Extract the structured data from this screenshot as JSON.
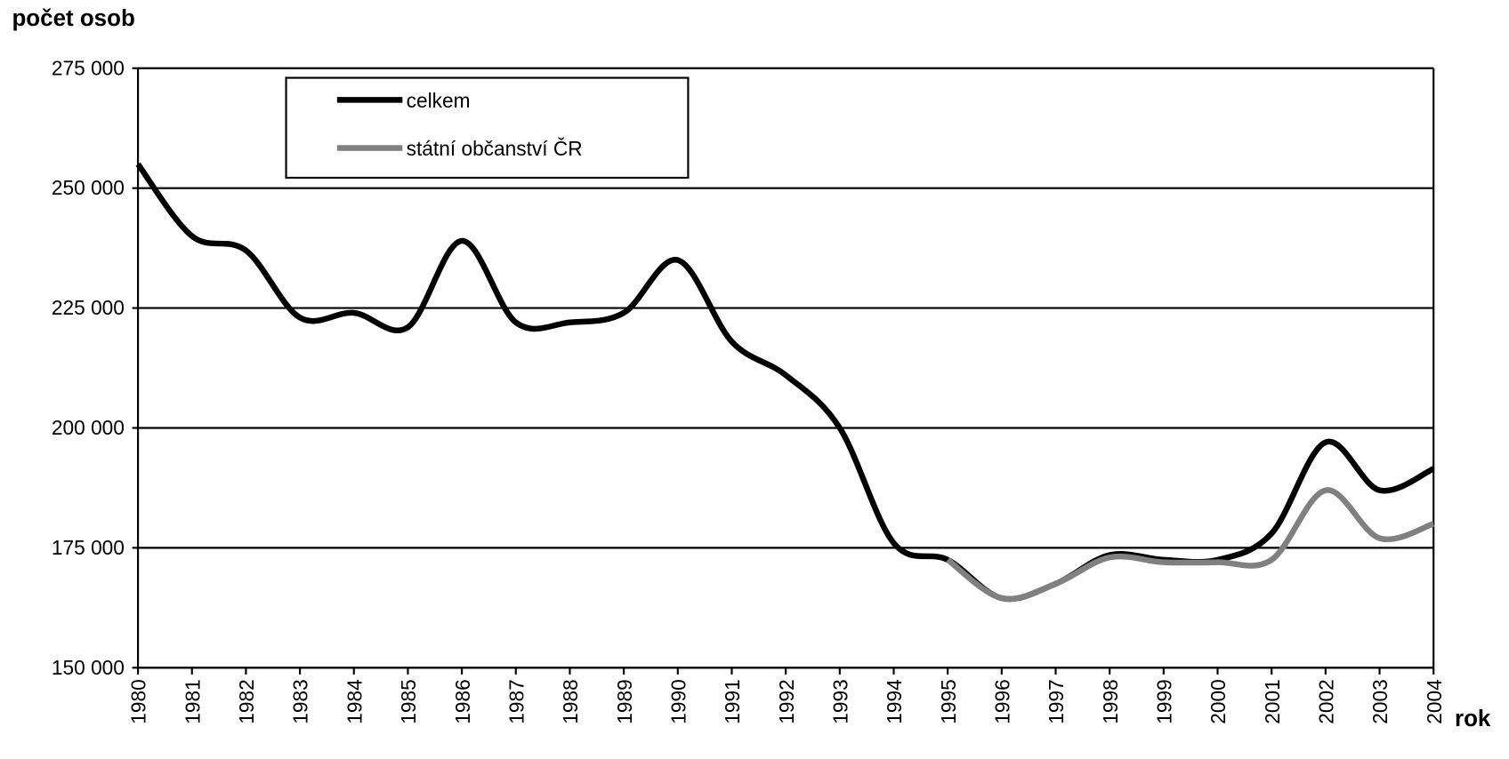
{
  "chart_data": {
    "type": "line",
    "y_label": "počet osob",
    "x_label": "rok",
    "categories": [
      "1980",
      "1981",
      "1982",
      "1983",
      "1984",
      "1985",
      "1986",
      "1987",
      "1988",
      "1989",
      "1990",
      "1991",
      "1992",
      "1993",
      "1994",
      "1995",
      "1996",
      "1997",
      "1998",
      "1999",
      "2000",
      "2001",
      "2002",
      "2003",
      "2004"
    ],
    "series": [
      {
        "name": "celkem",
        "color": "#000000",
        "values": [
          255000,
          240000,
          237000,
          223000,
          224000,
          221000,
          239000,
          222000,
          222000,
          224000,
          235000,
          218000,
          211000,
          200000,
          176000,
          172500,
          164500,
          167500,
          173500,
          172500,
          172500,
          178000,
          197000,
          187000,
          191500
        ]
      },
      {
        "name": "státní občanství ČR",
        "color": "#808080",
        "values": [
          null,
          null,
          null,
          null,
          null,
          null,
          null,
          null,
          null,
          null,
          null,
          null,
          null,
          null,
          null,
          172500,
          164500,
          167500,
          173000,
          172000,
          172000,
          172500,
          187000,
          177000,
          180000
        ]
      }
    ],
    "ylim": [
      150000,
      275000
    ],
    "yticks": [
      {
        "value": 150000,
        "label": "150 000"
      },
      {
        "value": 175000,
        "label": "175 000"
      },
      {
        "value": 200000,
        "label": "200 000"
      },
      {
        "value": 225000,
        "label": "225 000"
      },
      {
        "value": 250000,
        "label": "250 000"
      },
      {
        "value": 275000,
        "label": "275 000"
      }
    ],
    "grid": true,
    "legend": "top-left"
  }
}
